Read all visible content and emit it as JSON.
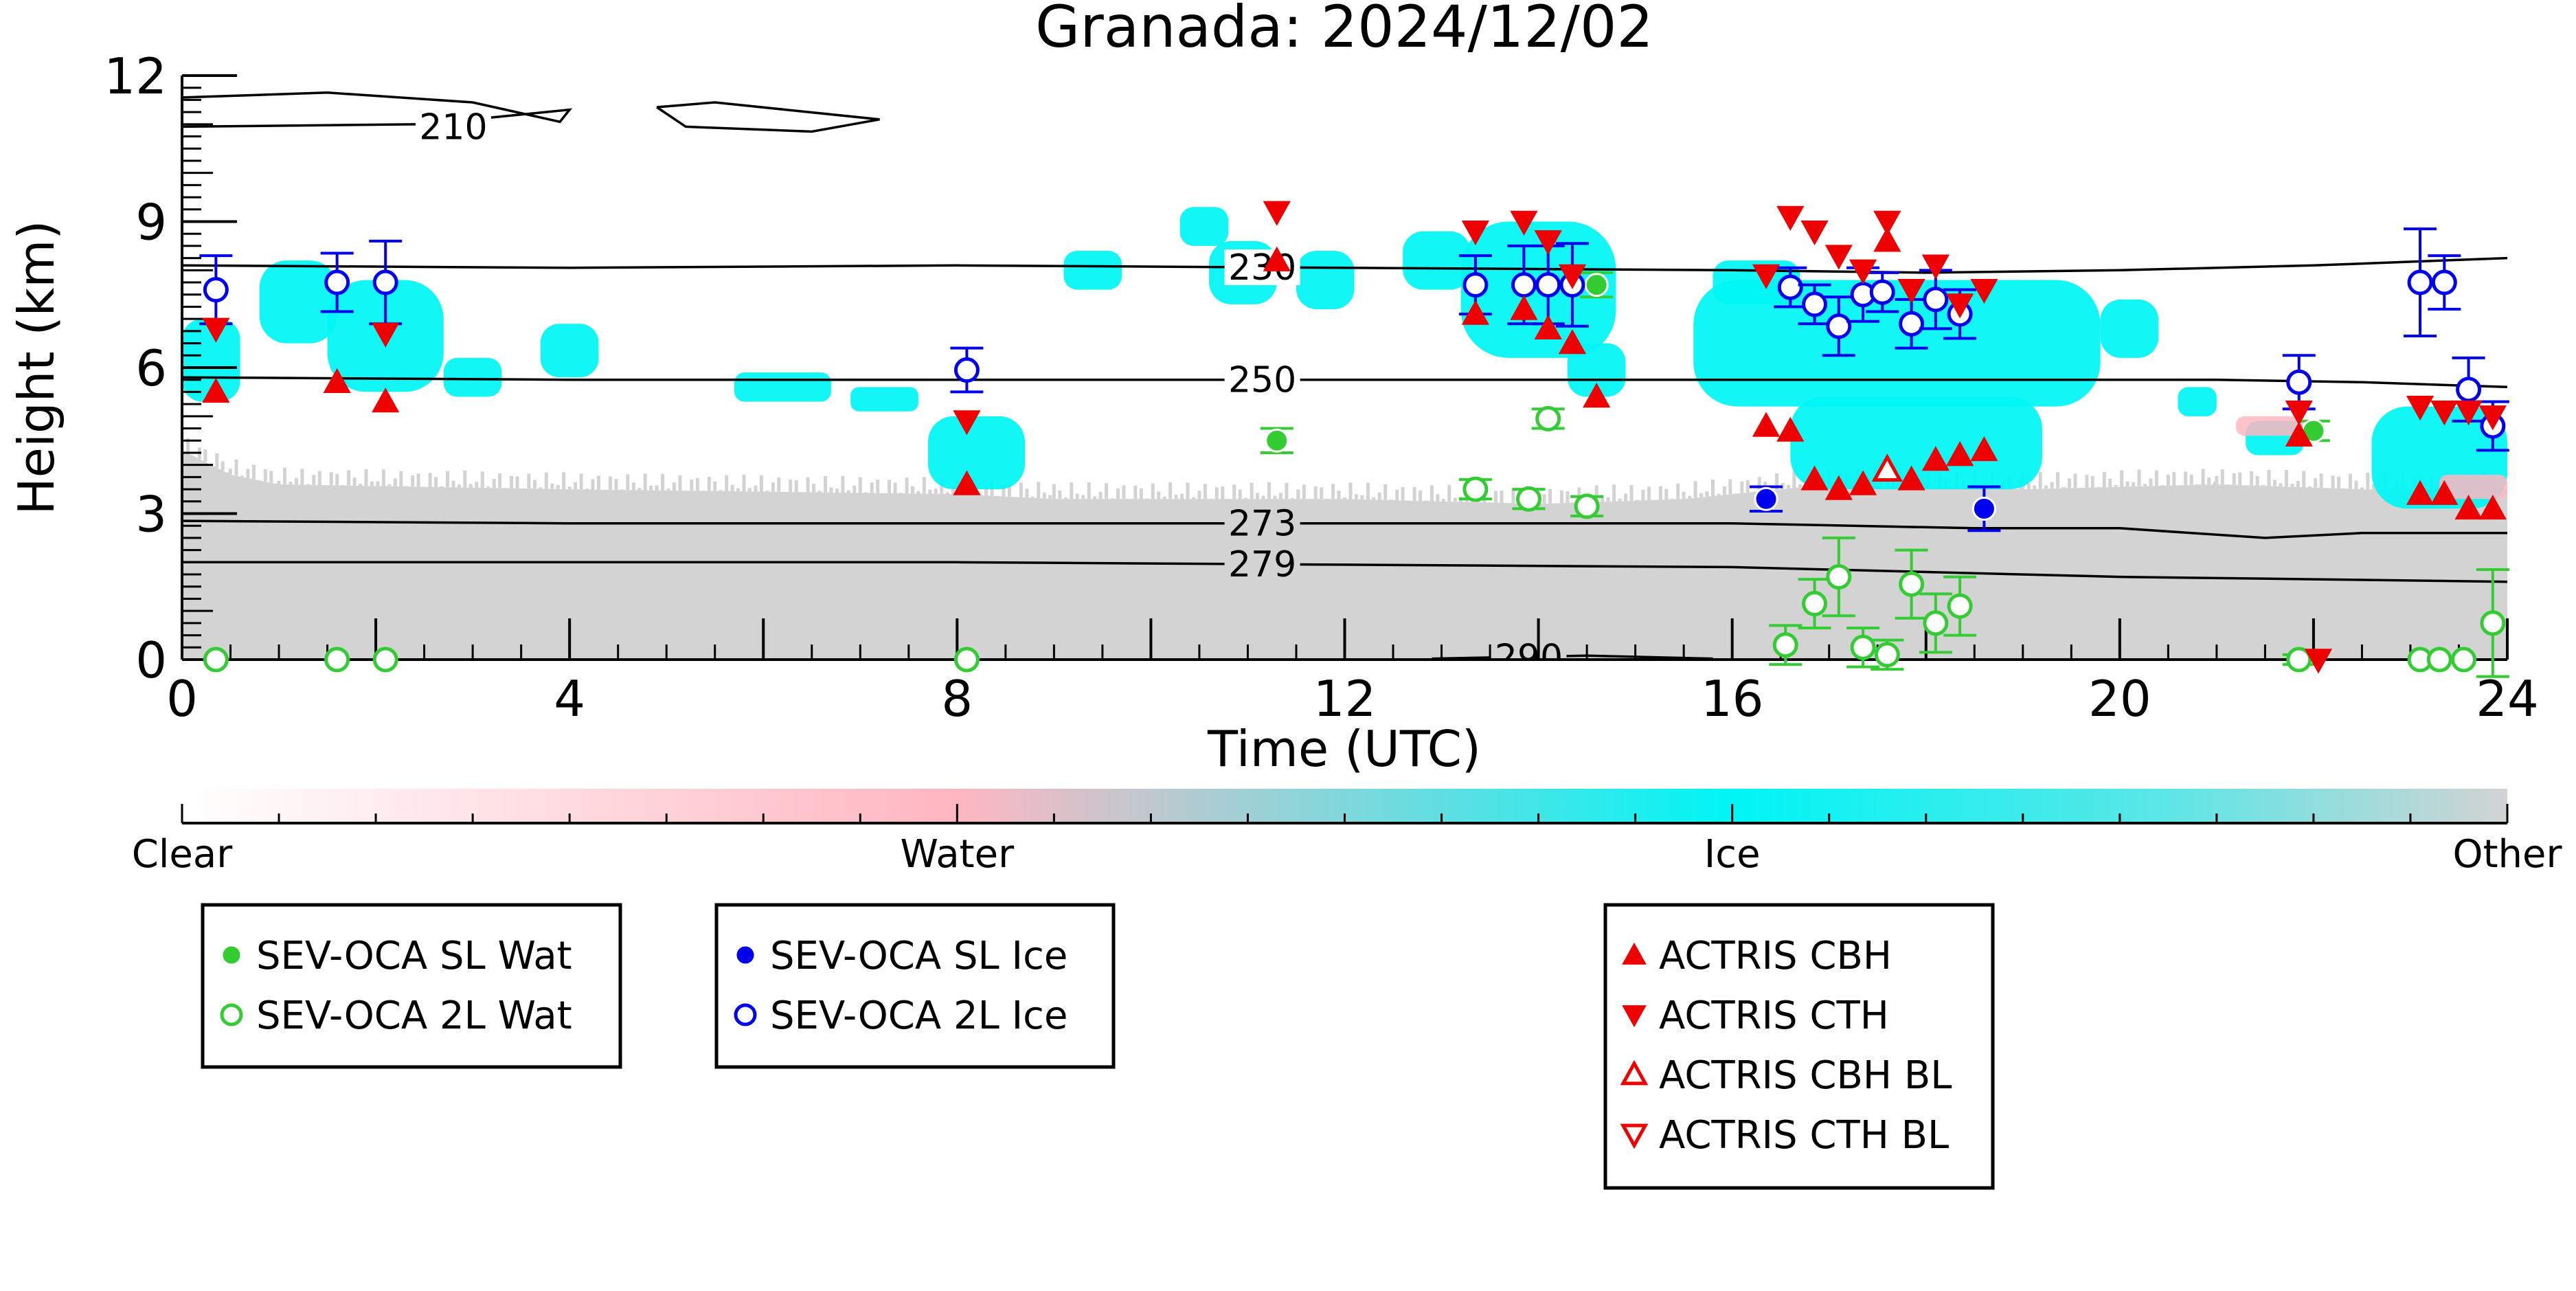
{
  "chart_data": {
    "type": "scatter",
    "title": "Granada: 2024/12/02",
    "xlabel": "Time (UTC)",
    "ylabel": "Height (km)",
    "xlim": [
      0,
      24
    ],
    "ylim": [
      0,
      12
    ],
    "x_ticks": [
      "0",
      "4",
      "8",
      "12",
      "16",
      "20",
      "24"
    ],
    "y_ticks": [
      "0",
      "3",
      "6",
      "9",
      "12"
    ],
    "temperature_contours": [
      {
        "label": "210",
        "points": [
          [
            0.0,
            11.55
          ],
          [
            1.5,
            11.65
          ],
          [
            3.0,
            11.45
          ],
          [
            3.9,
            11.05
          ],
          [
            4.0,
            11.3
          ],
          [
            2.5,
            11.0
          ],
          [
            0.0,
            10.95
          ]
        ]
      },
      {
        "label": "210",
        "points": [
          [
            4.9,
            11.35
          ],
          [
            5.5,
            11.45
          ],
          [
            7.2,
            11.1
          ],
          [
            6.5,
            10.85
          ],
          [
            5.2,
            10.95
          ],
          [
            4.9,
            11.35
          ]
        ]
      },
      {
        "label": "230",
        "points": [
          [
            0,
            8.1
          ],
          [
            4,
            8.05
          ],
          [
            8,
            8.1
          ],
          [
            12,
            8.05
          ],
          [
            16,
            8.0
          ],
          [
            18,
            7.95
          ],
          [
            20,
            8.0
          ],
          [
            22,
            8.1
          ],
          [
            24,
            8.25
          ]
        ]
      },
      {
        "label": "250",
        "points": [
          [
            0,
            5.8
          ],
          [
            4,
            5.75
          ],
          [
            8,
            5.75
          ],
          [
            12,
            5.75
          ],
          [
            16,
            5.75
          ],
          [
            19,
            5.75
          ],
          [
            21,
            5.75
          ],
          [
            22.5,
            5.7
          ],
          [
            24,
            5.6
          ]
        ]
      },
      {
        "label": "273",
        "points": [
          [
            0,
            2.85
          ],
          [
            4,
            2.8
          ],
          [
            8,
            2.8
          ],
          [
            12,
            2.8
          ],
          [
            16,
            2.8
          ],
          [
            18.5,
            2.7
          ],
          [
            20,
            2.7
          ],
          [
            21.5,
            2.5
          ],
          [
            22.5,
            2.6
          ],
          [
            24,
            2.6
          ]
        ]
      },
      {
        "label": "279",
        "points": [
          [
            0,
            2.0
          ],
          [
            4,
            2.0
          ],
          [
            8,
            2.0
          ],
          [
            12,
            1.95
          ],
          [
            16,
            1.9
          ],
          [
            18,
            1.8
          ],
          [
            20,
            1.7
          ],
          [
            22,
            1.65
          ],
          [
            24,
            1.6
          ]
        ]
      },
      {
        "label": "290",
        "points": [
          [
            12.9,
            0.02
          ],
          [
            14.5,
            0.08
          ],
          [
            15.8,
            0.02
          ]
        ]
      }
    ],
    "ice_regions": [
      [
        0.0,
        5.3,
        0.6,
        7.0
      ],
      [
        0.8,
        6.5,
        1.6,
        8.2
      ],
      [
        1.5,
        5.5,
        2.7,
        7.8
      ],
      [
        2.7,
        5.4,
        3.3,
        6.2
      ],
      [
        3.7,
        5.8,
        4.3,
        6.9
      ],
      [
        5.7,
        5.3,
        6.7,
        5.9
      ],
      [
        6.9,
        5.1,
        7.6,
        5.6
      ],
      [
        7.7,
        3.5,
        8.7,
        5.0
      ],
      [
        9.1,
        7.6,
        9.7,
        8.4
      ],
      [
        10.3,
        8.5,
        10.8,
        9.3
      ],
      [
        10.6,
        7.3,
        11.3,
        8.6
      ],
      [
        11.5,
        7.2,
        12.1,
        8.4
      ],
      [
        12.6,
        7.6,
        13.3,
        8.8
      ],
      [
        13.2,
        6.2,
        14.8,
        9.0
      ],
      [
        14.3,
        5.4,
        14.9,
        6.5
      ],
      [
        15.8,
        7.3,
        16.7,
        8.2
      ],
      [
        15.6,
        5.2,
        19.8,
        7.8
      ],
      [
        16.6,
        3.5,
        19.2,
        5.4
      ],
      [
        19.8,
        6.2,
        20.4,
        7.4
      ],
      [
        20.6,
        5.0,
        21.0,
        5.6
      ],
      [
        21.3,
        4.2,
        21.9,
        4.9
      ],
      [
        22.6,
        3.1,
        24.0,
        5.2
      ]
    ],
    "water_regions": [
      [
        21.2,
        4.6,
        21.9,
        5.0
      ],
      [
        23.3,
        3.3,
        24.0,
        3.8
      ]
    ],
    "other_region": {
      "description_free": true,
      "top_edge": [
        [
          0,
          4.3
        ],
        [
          0.5,
          3.8
        ],
        [
          1,
          3.6
        ],
        [
          4,
          3.5
        ],
        [
          8,
          3.4
        ],
        [
          9,
          3.3
        ],
        [
          12,
          3.3
        ],
        [
          14,
          3.2
        ],
        [
          15.5,
          3.3
        ],
        [
          17,
          3.6
        ],
        [
          19,
          3.5
        ],
        [
          21,
          3.6
        ],
        [
          22.5,
          3.5
        ],
        [
          24,
          3.5
        ]
      ]
    },
    "series": [
      {
        "name": "SEV-OCA SL Wat",
        "marker": "circle-filled",
        "color": "#33cc33",
        "points": [
          [
            11.3,
            4.5,
            0.25
          ],
          [
            14.6,
            7.7,
            0.25
          ],
          [
            22.0,
            4.7,
            0.2
          ]
        ]
      },
      {
        "name": "SEV-OCA 2L Wat",
        "marker": "circle-open",
        "color": "#33cc33",
        "points": [
          [
            0.35,
            0.0,
            0
          ],
          [
            1.6,
            0.0,
            0
          ],
          [
            2.1,
            0.0,
            0
          ],
          [
            8.1,
            0.0,
            0
          ],
          [
            13.35,
            3.5,
            0.2
          ],
          [
            13.9,
            3.3,
            0.2
          ],
          [
            14.1,
            4.95,
            0.2
          ],
          [
            14.5,
            3.15,
            0.2
          ],
          [
            16.55,
            0.3,
            0.4
          ],
          [
            16.85,
            1.15,
            0.5
          ],
          [
            17.1,
            1.7,
            0.8
          ],
          [
            17.35,
            0.25,
            0.4
          ],
          [
            17.6,
            0.1,
            0.3
          ],
          [
            17.85,
            1.55,
            0.7
          ],
          [
            18.1,
            0.75,
            0.6
          ],
          [
            18.35,
            1.1,
            0.6
          ],
          [
            21.85,
            0.0,
            0.1
          ],
          [
            23.1,
            0.0,
            0
          ],
          [
            23.3,
            0.0,
            0
          ],
          [
            23.55,
            0.0,
            0
          ],
          [
            23.85,
            0.75,
            1.1
          ]
        ]
      },
      {
        "name": "SEV-OCA SL Ice",
        "marker": "circle-filled",
        "color": "#0000ee",
        "points": [
          [
            16.35,
            3.3,
            0.25
          ],
          [
            18.6,
            3.1,
            0.45
          ]
        ]
      },
      {
        "name": "SEV-OCA 2L Ice",
        "marker": "circle-open",
        "color": "#0000ee",
        "points": [
          [
            0.35,
            7.6,
            0.7
          ],
          [
            1.6,
            7.75,
            0.6
          ],
          [
            2.1,
            7.75,
            0.85
          ],
          [
            8.1,
            5.95,
            0.45
          ],
          [
            13.35,
            7.7,
            0.6
          ],
          [
            13.85,
            7.7,
            0.8
          ],
          [
            14.1,
            7.7,
            0.8
          ],
          [
            14.35,
            7.7,
            0.85
          ],
          [
            16.6,
            7.65,
            0.4
          ],
          [
            16.85,
            7.3,
            0.4
          ],
          [
            17.1,
            6.85,
            0.6
          ],
          [
            17.35,
            7.5,
            0.55
          ],
          [
            17.55,
            7.55,
            0.4
          ],
          [
            17.85,
            6.9,
            0.5
          ],
          [
            18.1,
            7.4,
            0.6
          ],
          [
            18.35,
            7.1,
            0.5
          ],
          [
            21.85,
            5.7,
            0.55
          ],
          [
            23.1,
            7.75,
            1.1
          ],
          [
            23.35,
            7.75,
            0.55
          ],
          [
            23.6,
            5.55,
            0.65
          ],
          [
            23.85,
            4.8,
            0.5
          ]
        ]
      },
      {
        "name": "ACTRIS CBH",
        "marker": "triangle-up-filled",
        "color": "#ee0000",
        "points": [
          [
            0.35,
            5.5
          ],
          [
            1.6,
            5.7
          ],
          [
            2.1,
            5.3
          ],
          [
            8.1,
            3.6
          ],
          [
            11.3,
            8.2
          ],
          [
            13.35,
            7.1
          ],
          [
            13.85,
            7.2
          ],
          [
            14.1,
            6.8
          ],
          [
            14.35,
            6.5
          ],
          [
            14.6,
            5.4
          ],
          [
            16.35,
            4.8
          ],
          [
            16.6,
            4.7
          ],
          [
            16.85,
            3.7
          ],
          [
            17.1,
            3.5
          ],
          [
            17.35,
            3.6
          ],
          [
            17.6,
            8.6
          ],
          [
            17.85,
            3.7
          ],
          [
            18.1,
            4.1
          ],
          [
            18.35,
            4.2
          ],
          [
            18.6,
            4.3
          ],
          [
            21.85,
            4.6
          ],
          [
            23.1,
            3.4
          ],
          [
            23.35,
            3.4
          ],
          [
            23.6,
            3.1
          ],
          [
            23.85,
            3.1
          ]
        ]
      },
      {
        "name": "ACTRIS CTH",
        "marker": "triangle-down-filled",
        "color": "#ee0000",
        "points": [
          [
            0.35,
            6.8
          ],
          [
            2.1,
            6.7
          ],
          [
            8.1,
            4.9
          ],
          [
            11.3,
            9.2
          ],
          [
            13.35,
            8.8
          ],
          [
            13.85,
            9.0
          ],
          [
            14.1,
            8.6
          ],
          [
            14.35,
            7.9
          ],
          [
            16.35,
            7.9
          ],
          [
            16.6,
            9.1
          ],
          [
            16.85,
            8.8
          ],
          [
            17.1,
            8.3
          ],
          [
            17.35,
            8.0
          ],
          [
            17.6,
            9.0
          ],
          [
            17.85,
            7.6
          ],
          [
            18.1,
            8.1
          ],
          [
            18.35,
            7.3
          ],
          [
            18.6,
            7.6
          ],
          [
            21.85,
            5.1
          ],
          [
            22.05,
            0.0
          ],
          [
            23.1,
            5.2
          ],
          [
            23.35,
            5.1
          ],
          [
            23.6,
            5.1
          ],
          [
            23.85,
            5.0
          ]
        ]
      },
      {
        "name": "ACTRIS CBH BL",
        "marker": "triangle-up-open",
        "color": "#ee0000",
        "points": [
          [
            17.6,
            3.9
          ]
        ]
      },
      {
        "name": "ACTRIS CTH BL",
        "marker": "triangle-down-open",
        "color": "#ee0000",
        "points": []
      }
    ],
    "colorbar": {
      "labels": [
        "Clear",
        "Water",
        "Ice",
        "Other"
      ],
      "colors": [
        "#ffffff",
        "#ffb6c1",
        "#00f5f5",
        "#d3d3d3"
      ]
    },
    "legend_groups": [
      [
        "SEV-OCA SL Wat",
        "SEV-OCA 2L Wat"
      ],
      [
        "SEV-OCA SL Ice",
        "SEV-OCA 2L Ice"
      ],
      [
        "ACTRIS CBH",
        "ACTRIS CTH",
        "ACTRIS CBH BL",
        "ACTRIS CTH BL"
      ]
    ]
  }
}
